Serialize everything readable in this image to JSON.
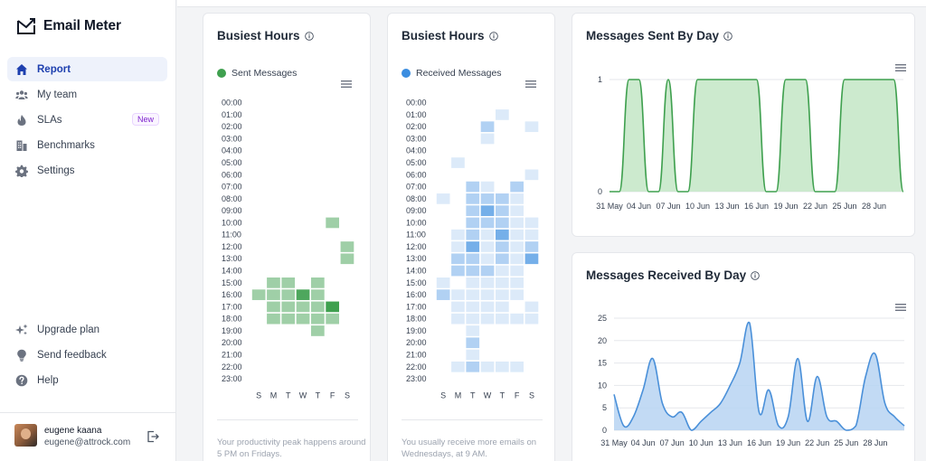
{
  "app": {
    "name": "Email Meter"
  },
  "sidebar": {
    "nav": [
      {
        "label": "Report",
        "icon": "home-icon",
        "active": true
      },
      {
        "label": "My team",
        "icon": "team-icon"
      },
      {
        "label": "SLAs",
        "icon": "flame-icon",
        "badge": "New"
      },
      {
        "label": "Benchmarks",
        "icon": "building-icon"
      },
      {
        "label": "Settings",
        "icon": "gear-icon"
      }
    ],
    "bottom_nav": [
      {
        "label": "Upgrade plan",
        "icon": "sparkle-icon"
      },
      {
        "label": "Send feedback",
        "icon": "bulb-icon"
      },
      {
        "label": "Help",
        "icon": "help-icon"
      }
    ],
    "user": {
      "name": "eugene kaana",
      "email": "eugene@attrock.com"
    }
  },
  "heatmap_hours": [
    "00:00",
    "01:00",
    "02:00",
    "03:00",
    "04:00",
    "05:00",
    "06:00",
    "07:00",
    "08:00",
    "09:00",
    "10:00",
    "11:00",
    "12:00",
    "13:00",
    "14:00",
    "15:00",
    "16:00",
    "17:00",
    "18:00",
    "19:00",
    "20:00",
    "21:00",
    "22:00",
    "23:00"
  ],
  "heatmap_days": [
    "S",
    "M",
    "T",
    "W",
    "T",
    "F",
    "S"
  ],
  "busiest_sent": {
    "title": "Busiest Hours",
    "legend": "Sent Messages",
    "color": "#3fa04f",
    "footnote": "Your productivity peak happens around 5 PM on Fridays.",
    "cells": [
      [
        10,
        5,
        1
      ],
      [
        12,
        6,
        1
      ],
      [
        13,
        6,
        1
      ],
      [
        15,
        1,
        1
      ],
      [
        15,
        2,
        1
      ],
      [
        15,
        4,
        1
      ],
      [
        16,
        0,
        1
      ],
      [
        16,
        1,
        1
      ],
      [
        16,
        2,
        1
      ],
      [
        16,
        3,
        3
      ],
      [
        16,
        4,
        1
      ],
      [
        17,
        1,
        1
      ],
      [
        17,
        2,
        1
      ],
      [
        17,
        3,
        1
      ],
      [
        17,
        4,
        1
      ],
      [
        17,
        5,
        4
      ],
      [
        18,
        1,
        1
      ],
      [
        18,
        2,
        1
      ],
      [
        18,
        3,
        1
      ],
      [
        18,
        4,
        1
      ],
      [
        18,
        5,
        1
      ],
      [
        19,
        4,
        1
      ]
    ]
  },
  "busiest_received": {
    "title": "Busiest Hours",
    "legend": "Received Messages",
    "color": "#3b8de0",
    "footnote": "You usually receive more emails on Wednesdays, at 9 AM.",
    "cells": [
      [
        1,
        4,
        1
      ],
      [
        2,
        3,
        2
      ],
      [
        2,
        6,
        1
      ],
      [
        3,
        3,
        1
      ],
      [
        5,
        1,
        1
      ],
      [
        6,
        6,
        1
      ],
      [
        7,
        2,
        2
      ],
      [
        7,
        3,
        1
      ],
      [
        7,
        5,
        2
      ],
      [
        8,
        0,
        1
      ],
      [
        8,
        2,
        2
      ],
      [
        8,
        3,
        2
      ],
      [
        8,
        4,
        2
      ],
      [
        8,
        5,
        1
      ],
      [
        9,
        2,
        2
      ],
      [
        9,
        3,
        3
      ],
      [
        9,
        4,
        2
      ],
      [
        9,
        5,
        1
      ],
      [
        10,
        2,
        2
      ],
      [
        10,
        3,
        2
      ],
      [
        10,
        4,
        2
      ],
      [
        10,
        5,
        1
      ],
      [
        10,
        6,
        1
      ],
      [
        11,
        1,
        1
      ],
      [
        11,
        2,
        2
      ],
      [
        11,
        3,
        1
      ],
      [
        11,
        4,
        3
      ],
      [
        11,
        5,
        1
      ],
      [
        11,
        6,
        1
      ],
      [
        12,
        1,
        1
      ],
      [
        12,
        2,
        3
      ],
      [
        12,
        3,
        1
      ],
      [
        12,
        4,
        2
      ],
      [
        12,
        5,
        1
      ],
      [
        12,
        6,
        2
      ],
      [
        13,
        1,
        2
      ],
      [
        13,
        2,
        2
      ],
      [
        13,
        3,
        1
      ],
      [
        13,
        4,
        2
      ],
      [
        13,
        5,
        1
      ],
      [
        13,
        6,
        3
      ],
      [
        14,
        1,
        2
      ],
      [
        14,
        2,
        2
      ],
      [
        14,
        3,
        2
      ],
      [
        14,
        4,
        1
      ],
      [
        14,
        5,
        1
      ],
      [
        15,
        0,
        1
      ],
      [
        15,
        2,
        1
      ],
      [
        15,
        3,
        1
      ],
      [
        15,
        4,
        1
      ],
      [
        15,
        5,
        1
      ],
      [
        16,
        0,
        2
      ],
      [
        16,
        1,
        1
      ],
      [
        16,
        2,
        1
      ],
      [
        16,
        3,
        1
      ],
      [
        16,
        4,
        1
      ],
      [
        16,
        5,
        1
      ],
      [
        17,
        1,
        1
      ],
      [
        17,
        2,
        1
      ],
      [
        17,
        3,
        1
      ],
      [
        17,
        4,
        1
      ],
      [
        17,
        6,
        1
      ],
      [
        18,
        1,
        1
      ],
      [
        18,
        2,
        1
      ],
      [
        18,
        3,
        1
      ],
      [
        18,
        4,
        1
      ],
      [
        18,
        5,
        1
      ],
      [
        18,
        6,
        1
      ],
      [
        19,
        2,
        1
      ],
      [
        20,
        2,
        2
      ],
      [
        21,
        2,
        1
      ],
      [
        22,
        1,
        1
      ],
      [
        22,
        2,
        2
      ],
      [
        22,
        3,
        1
      ],
      [
        22,
        4,
        1
      ],
      [
        22,
        5,
        1
      ]
    ]
  },
  "sent_by_day": {
    "title": "Messages Sent By Day",
    "color": "#3fa04f",
    "fill": "#c7e8c9",
    "y_ticks": [
      0,
      1
    ],
    "x_labels": [
      "31 May",
      "04 Jun",
      "07 Jun",
      "10 Jun",
      "13 Jun",
      "16 Jun",
      "19 Jun",
      "22 Jun",
      "25 Jun",
      "28 Jun"
    ],
    "values": [
      0,
      0,
      1,
      1,
      0,
      0,
      1,
      0,
      0,
      1,
      1,
      1,
      1,
      1,
      1,
      1,
      0,
      0,
      1,
      1,
      1,
      0,
      0,
      0,
      1,
      1,
      1,
      1,
      1,
      1,
      0
    ]
  },
  "received_by_day": {
    "title": "Messages Received By Day",
    "color": "#4a90d9",
    "fill": "#b7d3f2",
    "y_ticks": [
      0,
      5,
      10,
      15,
      20,
      25
    ],
    "x_labels": [
      "31 May",
      "04 Jun",
      "07 Jun",
      "10 Jun",
      "13 Jun",
      "16 Jun",
      "19 Jun",
      "22 Jun",
      "25 Jun",
      "28 Jun"
    ],
    "values": [
      8,
      1,
      3,
      9,
      16,
      6,
      3,
      4,
      0,
      2,
      4,
      6,
      10,
      15,
      24,
      4,
      9,
      1,
      3,
      16,
      2,
      12,
      3,
      2,
      0,
      1,
      12,
      17,
      6,
      3,
      1
    ]
  }
}
